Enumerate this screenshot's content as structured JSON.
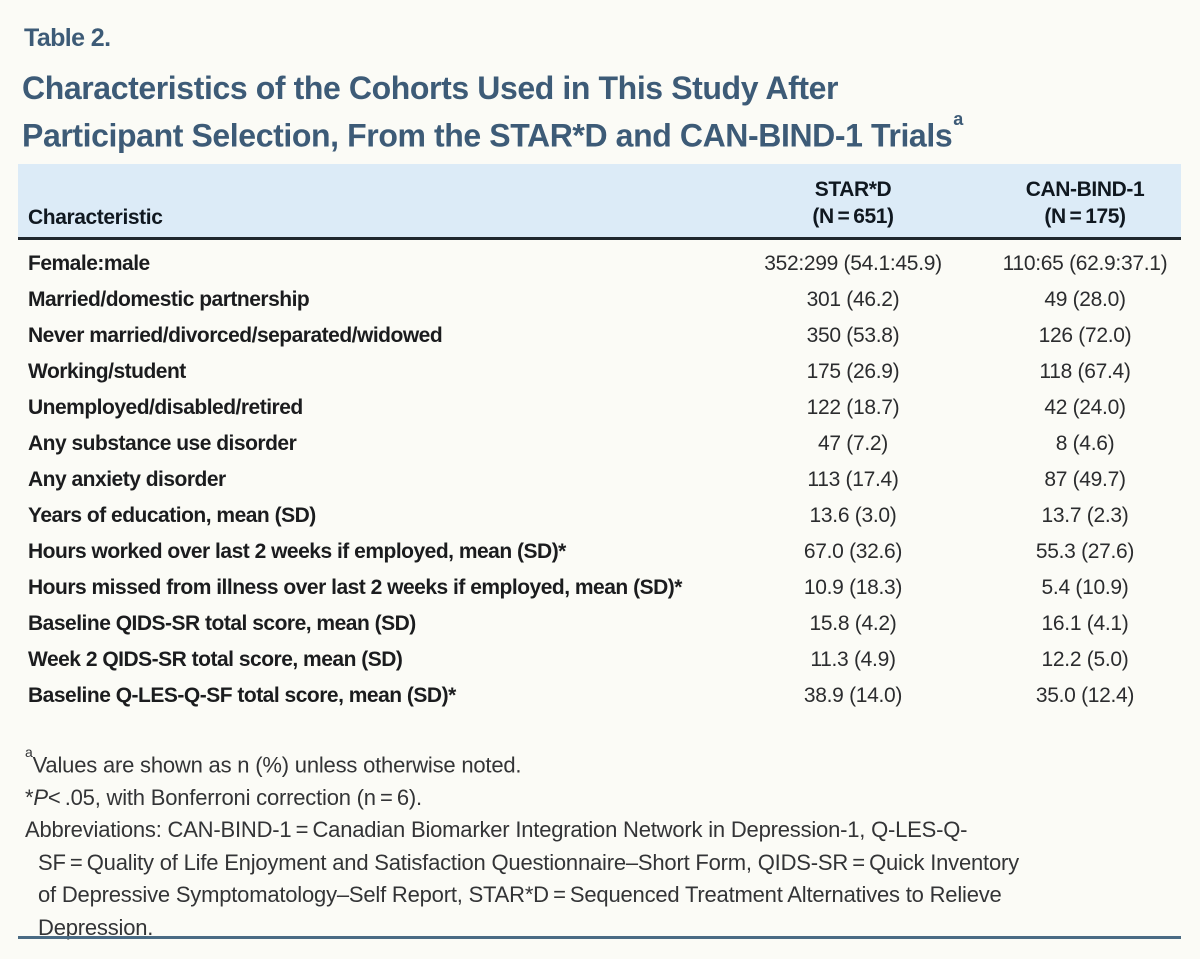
{
  "page": {
    "eyebrow": "Table 2.",
    "title_line1": "Characteristics of the Cohorts Used in This Study After",
    "title_line2": "Participant Selection, From the STAR*D and CAN-BIND-1 Trials",
    "title_superscript": "a"
  },
  "table": {
    "header": {
      "characteristic": "Characteristic",
      "col1_line1": "STAR*D",
      "col1_line2": "(N = 651)",
      "col2_line1": "CAN-BIND-1",
      "col2_line2": "(N = 175)"
    },
    "rows": [
      {
        "label": "Female:male",
        "stard": "352:299 (54.1:45.9)",
        "canbind": "110:65 (62.9:37.1)"
      },
      {
        "label": "Married/domestic partnership",
        "stard": "301 (46.2)",
        "canbind": "49 (28.0)"
      },
      {
        "label": "Never married/divorced/separated/widowed",
        "stard": "350 (53.8)",
        "canbind": "126 (72.0)"
      },
      {
        "label": "Working/student",
        "stard": "175 (26.9)",
        "canbind": "118 (67.4)"
      },
      {
        "label": "Unemployed/disabled/retired",
        "stard": "122 (18.7)",
        "canbind": "42 (24.0)"
      },
      {
        "label": "Any substance use disorder",
        "stard": "47 (7.2)",
        "canbind": "8 (4.6)"
      },
      {
        "label": "Any anxiety disorder",
        "stard": "113 (17.4)",
        "canbind": "87 (49.7)"
      },
      {
        "label": "Years of education, mean (SD)",
        "stard": "13.6 (3.0)",
        "canbind": "13.7 (2.3)"
      },
      {
        "label": "Hours worked over last 2 weeks if employed, mean (SD)*",
        "stard": "67.0 (32.6)",
        "canbind": "55.3 (27.6)"
      },
      {
        "label": "Hours missed from illness over last 2 weeks if employed, mean (SD)*",
        "stard": "10.9 (18.3)",
        "canbind": "5.4 (10.9)"
      },
      {
        "label": "Baseline QIDS-SR total score, mean (SD)",
        "stard": "15.8 (4.2)",
        "canbind": "16.1 (4.1)"
      },
      {
        "label": "Week 2 QIDS-SR total score, mean (SD)",
        "stard": "11.3 (4.9)",
        "canbind": "12.2 (5.0)"
      },
      {
        "label": "Baseline Q-LES-Q-SF total score, mean (SD)*",
        "stard": "38.9 (14.0)",
        "canbind": "35.0 (12.4)"
      }
    ]
  },
  "footnotes": {
    "note_a_sup": "a",
    "note_a_text": "Values are shown as n (%) unless otherwise noted.",
    "note_star_prefix": "*",
    "note_star_p": "P",
    "note_star_text": "< .05, with Bonferroni correction (n = 6).",
    "abbrev_line1": "Abbreviations: CAN-BIND-1 = Canadian Biomarker Integration Network in Depression-1, Q-LES-Q-",
    "abbrev_line2": "SF = Quality of Life Enjoyment and Satisfaction Questionnaire–Short Form, QIDS-SR = Quick Inventory",
    "abbrev_line3": "of Depressive Symptomatology–Self Report, STAR*D = Sequenced Treatment Alternatives to Relieve",
    "abbrev_line4": "Depression."
  },
  "colors": {
    "page_bg": "#fbfbf6",
    "title_blue": "#3d5b77",
    "header_bg": "#dcebf7",
    "header_text": "#101820",
    "header_rule": "#20272e",
    "body_text": "#1b1c1e",
    "value_text": "#2b2c2e",
    "footnote_text": "#333436",
    "bottom_rule": "#4a6b84"
  }
}
